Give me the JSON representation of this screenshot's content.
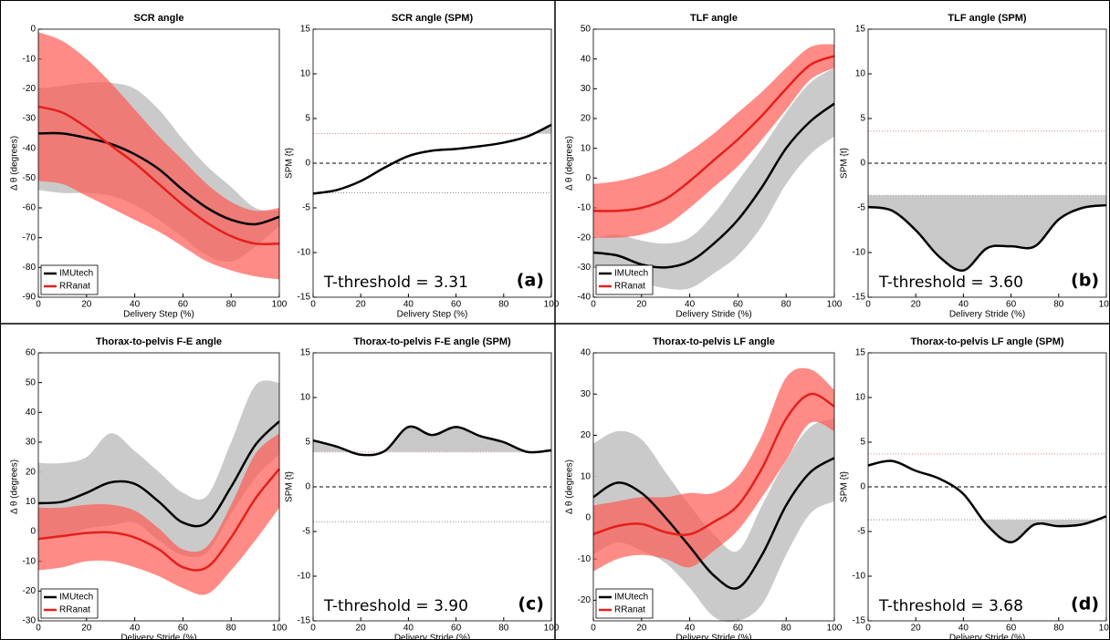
{
  "chart_data": [
    {
      "type": "line",
      "title": "SCR angle",
      "xlabel": "Delivery Step (%)",
      "ylabel": "Δ θ  (degrees)",
      "x": [
        0,
        10,
        20,
        30,
        40,
        50,
        60,
        70,
        80,
        90,
        100
      ],
      "xlim": [
        0,
        100
      ],
      "xticks": [
        0,
        20,
        40,
        60,
        80,
        100
      ],
      "ylim": [
        -90,
        0
      ],
      "yticks": [
        -90,
        -80,
        -70,
        -60,
        -50,
        -40,
        -30,
        -20,
        -10,
        0
      ],
      "legend": "lower left",
      "series": [
        {
          "name": "IMUtech",
          "color": "#000000",
          "band_color": "#c4c4c4",
          "values": [
            -35,
            -35,
            -36.5,
            -38.5,
            -42,
            -47,
            -54,
            -60,
            -64,
            -65.5,
            -63
          ],
          "upper": [
            -20,
            -19,
            -18,
            -18,
            -20,
            -27,
            -37,
            -46,
            -53,
            -60,
            -61
          ],
          "lower": [
            -54,
            -55,
            -55,
            -56,
            -59,
            -64,
            -70,
            -76,
            -78,
            -73,
            -66
          ]
        },
        {
          "name": "RRanat",
          "color": "#e3201b",
          "band_color": "#ff5a52",
          "values": [
            -26,
            -28,
            -33,
            -39,
            -45,
            -52,
            -59,
            -65,
            -69.5,
            -72,
            -72
          ],
          "upper": [
            -1,
            -4,
            -10,
            -18,
            -27,
            -36,
            -44,
            -52,
            -58,
            -61,
            -60
          ],
          "lower": [
            -51,
            -52,
            -56,
            -60,
            -64,
            -68,
            -73,
            -78,
            -81,
            -83,
            -84
          ]
        }
      ]
    },
    {
      "type": "spm",
      "title": "SCR angle (SPM)",
      "xlabel": "Delivery Step (%)",
      "ylabel": "SPM {t}",
      "x": [
        0,
        10,
        20,
        30,
        40,
        50,
        60,
        70,
        80,
        90,
        100
      ],
      "xlim": [
        0,
        100
      ],
      "xticks": [
        0,
        20,
        40,
        60,
        80,
        100
      ],
      "ylim": [
        -15,
        15
      ],
      "yticks": [
        -15,
        -10,
        -5,
        0,
        5,
        10,
        15
      ],
      "series": [
        {
          "color": "#000000",
          "values": [
            -3.4,
            -3,
            -2,
            -0.5,
            0.8,
            1.4,
            1.6,
            1.9,
            2.3,
            3,
            4.3
          ]
        }
      ],
      "threshold": 3.31,
      "annotation": "T-threshold = 3.31",
      "panel_label": "(a)"
    },
    {
      "type": "line",
      "title": "TLF angle",
      "xlabel": "Delivery Stride (%)",
      "ylabel": "Δ θ  (degrees)",
      "x": [
        0,
        10,
        20,
        30,
        40,
        50,
        60,
        70,
        80,
        90,
        100
      ],
      "xlim": [
        0,
        100
      ],
      "xticks": [
        0,
        20,
        40,
        60,
        80,
        100
      ],
      "ylim": [
        -40,
        50
      ],
      "yticks": [
        -40,
        -30,
        -20,
        -10,
        0,
        10,
        20,
        30,
        40,
        50
      ],
      "legend": "lower left",
      "series": [
        {
          "name": "IMUtech",
          "color": "#000000",
          "band_color": "#c4c4c4",
          "values": [
            -25,
            -26,
            -29,
            -30,
            -28,
            -22,
            -14,
            -3,
            10,
            19,
            25
          ],
          "upper": [
            -20,
            -19,
            -21,
            -22,
            -20,
            -12,
            -1,
            10,
            22,
            32,
            37
          ],
          "lower": [
            -30,
            -32,
            -35,
            -37,
            -37,
            -32,
            -26,
            -16,
            -2,
            8,
            14
          ]
        },
        {
          "name": "RRanat",
          "color": "#e3201b",
          "band_color": "#ff5a52",
          "values": [
            -11,
            -11,
            -10,
            -7,
            -1,
            6,
            13,
            21,
            30,
            38,
            41
          ],
          "upper": [
            -2,
            -1,
            1,
            4,
            9,
            15,
            22,
            29,
            37,
            44,
            45
          ],
          "lower": [
            -20,
            -20,
            -19,
            -16,
            -10,
            -3,
            4,
            13,
            23,
            33,
            37
          ]
        }
      ]
    },
    {
      "type": "spm",
      "title": "TLF angle (SPM)",
      "xlabel": "Delivery Stride (%)",
      "ylabel": "SPM {t}",
      "x": [
        0,
        10,
        20,
        30,
        40,
        50,
        60,
        70,
        80,
        90,
        100
      ],
      "xlim": [
        0,
        100
      ],
      "xticks": [
        0,
        20,
        40,
        60,
        80,
        100
      ],
      "ylim": [
        -15,
        15
      ],
      "yticks": [
        -15,
        -10,
        -5,
        0,
        5,
        10,
        15
      ],
      "series": [
        {
          "color": "#000000",
          "values": [
            -4.9,
            -5.3,
            -7.5,
            -10.5,
            -12,
            -9.5,
            -9.3,
            -9.3,
            -6.3,
            -5,
            -4.7
          ]
        }
      ],
      "threshold": 3.6,
      "annotation": "T-threshold = 3.60",
      "panel_label": "(b)"
    },
    {
      "type": "line",
      "title": "Thorax-to-pelvis F-E angle",
      "xlabel": "Delivery Stride (%)",
      "ylabel": "Δ θ  (degrees)",
      "x": [
        0,
        10,
        20,
        30,
        40,
        50,
        60,
        70,
        80,
        90,
        100
      ],
      "xlim": [
        0,
        100
      ],
      "xticks": [
        0,
        20,
        40,
        60,
        80,
        100
      ],
      "ylim": [
        -30,
        60
      ],
      "yticks": [
        -30,
        -20,
        -10,
        0,
        10,
        20,
        30,
        40,
        50,
        60
      ],
      "legend": "lower left",
      "series": [
        {
          "name": "IMUtech",
          "color": "#000000",
          "band_color": "#c4c4c4",
          "values": [
            9.5,
            10,
            13,
            16.5,
            16,
            10,
            3,
            3,
            15,
            29,
            37
          ],
          "upper": [
            23,
            23,
            25,
            33,
            27,
            20,
            13,
            12,
            30,
            49,
            50
          ],
          "lower": [
            -2,
            -2,
            1,
            2,
            3,
            -3,
            -8,
            -7,
            6,
            18,
            26
          ]
        },
        {
          "name": "RRanat",
          "color": "#e3201b",
          "band_color": "#ff5a52",
          "values": [
            -2.5,
            -1.5,
            -0.5,
            -0.3,
            -2,
            -6,
            -12,
            -12,
            -2,
            11,
            21
          ],
          "upper": [
            8,
            8,
            9,
            9,
            7,
            1,
            -6,
            -5,
            9,
            26,
            33
          ],
          "lower": [
            -13,
            -12,
            -10,
            -10,
            -12,
            -15,
            -19,
            -21,
            -13,
            -3,
            8
          ]
        }
      ]
    },
    {
      "type": "spm",
      "title": "Thorax-to-pelvis F-E angle (SPM)",
      "xlabel": "Delivery Stride (%)",
      "ylabel": "SPM {t}",
      "x": [
        0,
        10,
        20,
        30,
        40,
        50,
        60,
        70,
        80,
        90,
        100
      ],
      "xlim": [
        0,
        100
      ],
      "xticks": [
        0,
        20,
        40,
        60,
        80,
        100
      ],
      "ylim": [
        -15,
        15
      ],
      "yticks": [
        -15,
        -10,
        -5,
        0,
        5,
        10,
        15
      ],
      "series": [
        {
          "color": "#000000",
          "values": [
            5.2,
            4.5,
            3.6,
            4,
            6.7,
            5.8,
            6.7,
            5.7,
            5,
            3.9,
            4.1
          ]
        }
      ],
      "threshold": 3.9,
      "annotation": "T-threshold = 3.90",
      "panel_label": "(c)"
    },
    {
      "type": "line",
      "title": "Thorax-to-pelvis LF angle",
      "xlabel": "Delivery Stride (%)",
      "ylabel": "Δ θ  (degrees)",
      "x": [
        0,
        10,
        20,
        30,
        40,
        50,
        60,
        70,
        80,
        90,
        100
      ],
      "xlim": [
        0,
        100
      ],
      "xticks": [
        0,
        20,
        40,
        60,
        80,
        100
      ],
      "ylim": [
        -25,
        40
      ],
      "yticks": [
        -20,
        -10,
        0,
        10,
        20,
        30,
        40
      ],
      "legend": "lower left",
      "series": [
        {
          "name": "IMUtech",
          "color": "#000000",
          "band_color": "#c4c4c4",
          "values": [
            5,
            8.5,
            6,
            0,
            -7,
            -14,
            -17,
            -9,
            3,
            11,
            14.5
          ],
          "upper": [
            18,
            21,
            19,
            11,
            3,
            -4,
            -8,
            3,
            14,
            22,
            24
          ],
          "lower": [
            -9,
            -6,
            -8,
            -11,
            -17,
            -24,
            -25,
            -21,
            -9,
            1,
            4
          ]
        },
        {
          "name": "RRanat",
          "color": "#e3201b",
          "band_color": "#ff5a52",
          "values": [
            -4,
            -2,
            -1.5,
            -3.5,
            -4,
            -1,
            3,
            12,
            24,
            30,
            27
          ],
          "upper": [
            3,
            4,
            5,
            5,
            6,
            6,
            10,
            20,
            34,
            36,
            31
          ],
          "lower": [
            -13,
            -10,
            -9,
            -10,
            -12,
            -8,
            -3,
            5,
            14,
            23,
            21
          ]
        }
      ]
    },
    {
      "type": "spm",
      "title": "Thorax-to-pelvis LF angle (SPM)",
      "xlabel": "Delivery Stride (%)",
      "ylabel": "SPM {t}",
      "x": [
        0,
        10,
        20,
        30,
        40,
        50,
        60,
        70,
        80,
        90,
        100
      ],
      "xlim": [
        0,
        100
      ],
      "xticks": [
        0,
        20,
        40,
        60,
        80,
        100
      ],
      "ylim": [
        -15,
        15
      ],
      "yticks": [
        -15,
        -10,
        -5,
        0,
        5,
        10,
        15
      ],
      "series": [
        {
          "color": "#000000",
          "values": [
            2.4,
            2.9,
            1.8,
            0.9,
            -0.8,
            -4.3,
            -6.2,
            -4.2,
            -4.4,
            -4.2,
            -3.3
          ]
        }
      ],
      "threshold": 3.68,
      "annotation": "T-threshold = 3.68",
      "panel_label": "(d)"
    }
  ]
}
